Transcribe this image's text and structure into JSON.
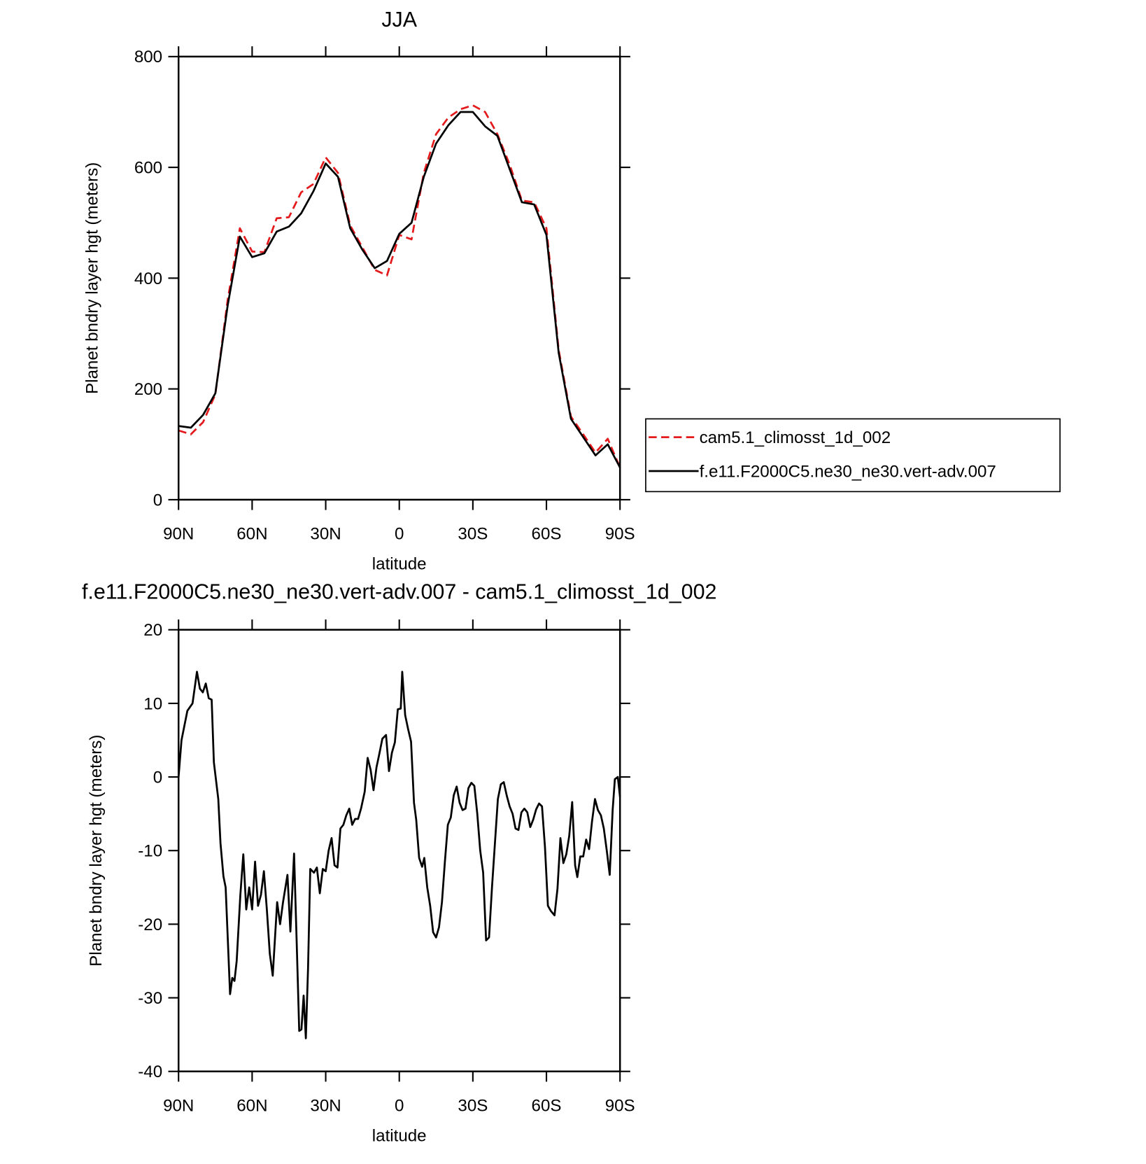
{
  "chart_data": [
    {
      "type": "line",
      "title": "JJA",
      "ylabel": "Planet bndry layer hgt (meters)",
      "xlabel": "latitude",
      "x": [
        90,
        85,
        80,
        75,
        70,
        65,
        60,
        55,
        50,
        45,
        40,
        35,
        30,
        25,
        20,
        15,
        10,
        5,
        0,
        -5,
        -10,
        -15,
        -20,
        -25,
        -30,
        -35,
        -40,
        -45,
        -50,
        -55,
        -60,
        -65,
        -70,
        -75,
        -80,
        -85,
        -90
      ],
      "series": [
        {
          "name": "cam5.1_climosst_1d_002",
          "color": "#e41a1c",
          "dash": true,
          "values": [
            125,
            118,
            140,
            190,
            360,
            490,
            448,
            447,
            508,
            510,
            555,
            570,
            618,
            590,
            495,
            455,
            415,
            405,
            478,
            470,
            590,
            660,
            690,
            705,
            712,
            700,
            660,
            605,
            540,
            537,
            490,
            270,
            150,
            118,
            85,
            110,
            58
          ]
        },
        {
          "name": "f.e11.F2000C5.ne30_ne30.vert-adv.007",
          "color": "#000000",
          "dash": false,
          "values": [
            133,
            130,
            153,
            192,
            350,
            475,
            438,
            445,
            484,
            493,
            517,
            557,
            607,
            583,
            490,
            451,
            418,
            431,
            480,
            500,
            583,
            643,
            676,
            700,
            700,
            674,
            657,
            597,
            537,
            533,
            478,
            265,
            146,
            113,
            80,
            100,
            58
          ]
        }
      ],
      "xlim": [
        90,
        -90
      ],
      "ylim": [
        0,
        800
      ],
      "xticks": [
        {
          "value": 90,
          "label": "90N"
        },
        {
          "value": 60,
          "label": "60N"
        },
        {
          "value": 30,
          "label": "30N"
        },
        0,
        {
          "value": -30,
          "label": "30S"
        },
        {
          "value": -60,
          "label": "60S"
        },
        {
          "value": -90,
          "label": "90S"
        }
      ],
      "yticks": [
        0,
        200,
        400,
        600,
        800
      ],
      "legend": "right"
    },
    {
      "type": "line",
      "title": "f.e11.F2000C5.ne30_ne30.vert-adv.007 - cam5.1_climosst_1d_002",
      "ylabel": "Planet bndry layer hgt (meters)",
      "xlabel": "latitude",
      "x": [
        90,
        88.8,
        86.4,
        84.3,
        82.5,
        81.3,
        80.1,
        78.9,
        77.7,
        76.5,
        75.6,
        73.8,
        72.9,
        71.7,
        70.8,
        69,
        68.1,
        67.2,
        66.3,
        64.8,
        63.6,
        62.4,
        61.2,
        60,
        58.8,
        57.6,
        56.4,
        55.2,
        54,
        52.8,
        51.6,
        49.8,
        48.6,
        47.4,
        45.6,
        44.4,
        42.9,
        41.7,
        40.8,
        39.9,
        39,
        38.1,
        37.2,
        36.3,
        34.8,
        33.6,
        32.4,
        31.2,
        30,
        28.8,
        27.6,
        26.4,
        25.2,
        24,
        22.8,
        21.6,
        20.4,
        19.2,
        18,
        16.8,
        15.6,
        14.1,
        12.9,
        11.7,
        10.5,
        9.3,
        8.1,
        6.9,
        5.4,
        4.2,
        3,
        1.8,
        0.6,
        -0.6,
        -1.2,
        -2.4,
        -3.6,
        -4.8,
        -6,
        -6.9,
        -8.1,
        -9.3,
        -10.2,
        -11.4,
        -12.6,
        -13.8,
        -15,
        -16.2,
        -17.4,
        -18.6,
        -19.8,
        -21,
        -22.2,
        -23.4,
        -24.6,
        -25.8,
        -27,
        -28.2,
        -29.4,
        -30.6,
        -31.8,
        -33,
        -34.2,
        -35.4,
        -36.6,
        -37.8,
        -39,
        -40.2,
        -41.4,
        -42.6,
        -43.8,
        -45,
        -46.2,
        -47.4,
        -48.6,
        -49.8,
        -51,
        -52.2,
        -53.4,
        -54.6,
        -55.8,
        -57,
        -58.2,
        -59.4,
        -60.6,
        -61.8,
        -63.3,
        -64.5,
        -65.7,
        -66.9,
        -68.1,
        -69.3,
        -70.5,
        -71.7,
        -72.6,
        -73.8,
        -75,
        -76.2,
        -77.4,
        -78.6,
        -79.8,
        -81,
        -82.2,
        -83.4,
        -84.6,
        -85.8,
        -87,
        -87.9,
        -89.1,
        -90
      ],
      "values": [
        0,
        5,
        9,
        10,
        14.3,
        12,
        11.5,
        12.7,
        10.7,
        10.5,
        2,
        -3,
        -9,
        -13.5,
        -15,
        -29.5,
        -27.3,
        -27.7,
        -25,
        -16,
        -10.5,
        -18,
        -15,
        -18,
        -11.5,
        -17.5,
        -16,
        -12.8,
        -18,
        -24,
        -27,
        -17,
        -20,
        -17,
        -13.3,
        -21,
        -10.4,
        -24,
        -34.5,
        -34.3,
        -29.7,
        -35.5,
        -26,
        -12.5,
        -13,
        -12.3,
        -15.8,
        -12.5,
        -12.8,
        -10,
        -8.3,
        -12,
        -12.3,
        -7,
        -6.5,
        -5.2,
        -4.3,
        -6.5,
        -5.7,
        -5.7,
        -4.3,
        -2,
        2.6,
        1,
        -1.8,
        1.3,
        3.2,
        5.2,
        5.7,
        0.8,
        3.3,
        4.7,
        9.2,
        9.3,
        14.3,
        8.4,
        6.5,
        4.8,
        -3.5,
        -5.8,
        -11,
        -12.2,
        -11,
        -15,
        -17.5,
        -21.1,
        -21.8,
        -20.4,
        -17,
        -11.5,
        -6.5,
        -5.5,
        -2.5,
        -1.3,
        -3.5,
        -4.5,
        -4.3,
        -1.5,
        -0.8,
        -1.2,
        -5,
        -10,
        -13,
        -22.2,
        -21.8,
        -15,
        -9,
        -3,
        -1,
        -0.7,
        -2.5,
        -4,
        -5,
        -7,
        -7.2,
        -4.8,
        -4.3,
        -4.8,
        -6.8,
        -5.8,
        -4.4,
        -3.6,
        -4,
        -9.5,
        -17.5,
        -18.2,
        -18.8,
        -15.2,
        -8.3,
        -11.7,
        -10.5,
        -8,
        -3.4,
        -12,
        -13.6,
        -10.8,
        -10.8,
        -8.5,
        -9.8,
        -6,
        -3,
        -4.5,
        -5.2,
        -7,
        -10,
        -13.3,
        -4.5,
        -0.3,
        0,
        -2.7
      ],
      "color": "#000000",
      "xlim": [
        90,
        -90
      ],
      "ylim": [
        -40,
        20
      ],
      "xticks": [
        {
          "value": 90,
          "label": "90N"
        },
        {
          "value": 60,
          "label": "60N"
        },
        {
          "value": 30,
          "label": "30N"
        },
        0,
        {
          "value": -30,
          "label": "30S"
        },
        {
          "value": -60,
          "label": "60S"
        },
        {
          "value": -90,
          "label": "90S"
        }
      ],
      "yticks": [
        20,
        10,
        0,
        -10,
        -20,
        -30,
        -40
      ]
    }
  ]
}
